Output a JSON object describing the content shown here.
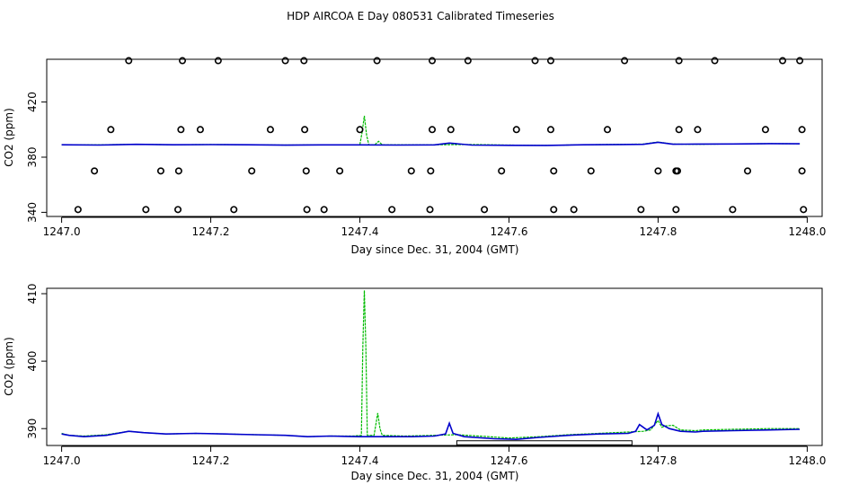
{
  "figure": {
    "title": "HDP AIRCOA E  Day 080531  Calibrated Timeseries"
  },
  "colors": {
    "green": "#00bb00",
    "blue": "#0000cc",
    "axis": "#000000"
  },
  "chart_data": [
    {
      "type": "line",
      "xlabel": "Day since Dec. 31, 2004 (GMT)",
      "ylabel": "CO2 (ppm)",
      "xlim": [
        1246.98,
        1248.02
      ],
      "ylim": [
        337,
        451
      ],
      "xticks": [
        "1247.0",
        "1247.2",
        "1247.4",
        "1247.6",
        "1247.8",
        "1248.0"
      ],
      "xtick_values": [
        1247.0,
        1247.2,
        1247.4,
        1247.6,
        1247.8,
        1248.0
      ],
      "yticks": [
        "340",
        "380",
        "420"
      ],
      "ytick_values": [
        340,
        380,
        420
      ],
      "series": [
        {
          "color": "green",
          "style": "line",
          "x": [
            1247.0,
            1247.05,
            1247.1,
            1247.15,
            1247.2,
            1247.25,
            1247.3,
            1247.35,
            1247.4,
            1247.403,
            1247.406,
            1247.409,
            1247.412,
            1247.42,
            1247.425,
            1247.43,
            1247.5,
            1247.55,
            1247.6,
            1247.65,
            1247.7,
            1247.75,
            1247.78,
            1247.8,
            1247.82,
            1247.85,
            1247.9,
            1247.95,
            1247.99
          ],
          "y": [
            389,
            389,
            389.3,
            389,
            389.2,
            389,
            388.8,
            388.9,
            389,
            398,
            410,
            396,
            389,
            389,
            391.5,
            389,
            389,
            389.2,
            388.8,
            388.5,
            389,
            389.3,
            389.5,
            391,
            389.5,
            389.3,
            389.6,
            389.8,
            389.7
          ]
        },
        {
          "color": "blue",
          "style": "line",
          "x": [
            1247.0,
            1247.05,
            1247.1,
            1247.15,
            1247.2,
            1247.25,
            1247.3,
            1247.35,
            1247.4,
            1247.45,
            1247.5,
            1247.52,
            1247.55,
            1247.6,
            1247.65,
            1247.7,
            1247.75,
            1247.78,
            1247.8,
            1247.82,
            1247.85,
            1247.9,
            1247.95,
            1247.99
          ],
          "y": [
            389,
            388.8,
            389.3,
            389,
            389.1,
            389,
            388.7,
            388.9,
            388.9,
            388.8,
            388.9,
            390.2,
            388.8,
            388.6,
            388.5,
            389,
            389.2,
            389.3,
            390.8,
            389.4,
            389.5,
            389.6,
            389.8,
            389.7
          ]
        },
        {
          "color": "black",
          "style": "points",
          "x": [
            1247.09,
            1247.162,
            1247.21,
            1247.3,
            1247.325,
            1247.423,
            1247.497,
            1247.545,
            1247.635,
            1247.656,
            1247.755,
            1247.828,
            1247.876,
            1247.967,
            1247.99,
            1247.066,
            1247.16,
            1247.186,
            1247.28,
            1247.326,
            1247.4,
            1247.497,
            1247.522,
            1247.61,
            1247.656,
            1247.732,
            1247.828,
            1247.853,
            1247.944,
            1247.993,
            1247.044,
            1247.133,
            1247.157,
            1247.255,
            1247.328,
            1247.373,
            1247.469,
            1247.495,
            1247.59,
            1247.66,
            1247.71,
            1247.8,
            1247.824,
            1247.826,
            1247.92,
            1247.993,
            1247.022,
            1247.113,
            1247.156,
            1247.231,
            1247.329,
            1247.352,
            1247.443,
            1247.494,
            1247.567,
            1247.66,
            1247.687,
            1247.777,
            1247.824,
            1247.9,
            1247.995
          ],
          "y": [
            450,
            450,
            450,
            450,
            450,
            450,
            450,
            450,
            450,
            450,
            450,
            450,
            450,
            450,
            450,
            400,
            400,
            400,
            400,
            400,
            400,
            400,
            400,
            400,
            400,
            400,
            400,
            400,
            400,
            400,
            370,
            370,
            370,
            370,
            370,
            370,
            370,
            370,
            370,
            370,
            370,
            370,
            370,
            370,
            370,
            370,
            342,
            342,
            342,
            342,
            342,
            342,
            342,
            342,
            342,
            342,
            342,
            342,
            342,
            342,
            342
          ]
        }
      ]
    },
    {
      "type": "line",
      "xlabel": "Day since Dec. 31, 2004 (GMT)",
      "ylabel": "CO2 (ppm)",
      "xlim": [
        1246.98,
        1248.02
      ],
      "ylim": [
        387.5,
        410.8
      ],
      "xticks": [
        "1247.0",
        "1247.2",
        "1247.4",
        "1247.6",
        "1247.8",
        "1248.0"
      ],
      "xtick_values": [
        1247.0,
        1247.2,
        1247.4,
        1247.6,
        1247.8,
        1248.0
      ],
      "yticks": [
        "390",
        "400",
        "410"
      ],
      "ytick_values": [
        390,
        400,
        410
      ],
      "span": {
        "x": [
          1247.53,
          1247.765
        ],
        "y": [
          387.6,
          388.2
        ]
      },
      "series": [
        {
          "color": "green",
          "style": "line",
          "x": [
            1247.0,
            1247.01,
            1247.03,
            1247.06,
            1247.09,
            1247.11,
            1247.14,
            1247.18,
            1247.22,
            1247.26,
            1247.3,
            1247.33,
            1247.36,
            1247.39,
            1247.402,
            1247.404,
            1247.406,
            1247.408,
            1247.41,
            1247.414,
            1247.419,
            1247.422,
            1247.424,
            1247.427,
            1247.43,
            1247.46,
            1247.5,
            1247.53,
            1247.56,
            1247.6,
            1247.64,
            1247.68,
            1247.72,
            1247.76,
            1247.78,
            1247.79,
            1247.8,
            1247.805,
            1247.81,
            1247.82,
            1247.83,
            1247.85,
            1247.86,
            1247.9,
            1247.95,
            1247.99
          ],
          "y": [
            389.3,
            389.0,
            388.9,
            389.1,
            389.6,
            389.4,
            389.2,
            389.3,
            389.2,
            389.1,
            389.0,
            388.8,
            388.9,
            388.9,
            389.0,
            402.0,
            410.5,
            402.0,
            389.0,
            389.0,
            389.0,
            391.0,
            392.3,
            390.0,
            389.0,
            388.9,
            389.0,
            389.1,
            388.9,
            388.6,
            388.8,
            389.1,
            389.3,
            389.5,
            389.6,
            389.8,
            391.2,
            390.2,
            390.4,
            390.5,
            389.8,
            389.7,
            389.8,
            389.9,
            390.0,
            390.0
          ]
        },
        {
          "color": "blue",
          "style": "line",
          "x": [
            1247.0,
            1247.01,
            1247.03,
            1247.06,
            1247.09,
            1247.11,
            1247.14,
            1247.18,
            1247.22,
            1247.26,
            1247.3,
            1247.33,
            1247.36,
            1247.4,
            1247.44,
            1247.47,
            1247.5,
            1247.515,
            1247.52,
            1247.525,
            1247.54,
            1247.58,
            1247.61,
            1247.64,
            1247.68,
            1247.72,
            1247.76,
            1247.77,
            1247.775,
            1247.785,
            1247.795,
            1247.8,
            1247.805,
            1247.815,
            1247.83,
            1247.85,
            1247.86,
            1247.9,
            1247.95,
            1247.99
          ],
          "y": [
            389.2,
            389.0,
            388.8,
            389.0,
            389.6,
            389.4,
            389.2,
            389.3,
            389.2,
            389.1,
            389.0,
            388.8,
            388.9,
            388.8,
            388.8,
            388.8,
            388.9,
            389.2,
            390.8,
            389.3,
            388.8,
            388.5,
            388.4,
            388.7,
            389.0,
            389.2,
            389.3,
            389.6,
            390.6,
            389.8,
            390.5,
            392.2,
            390.6,
            390.0,
            389.6,
            389.5,
            389.6,
            389.7,
            389.8,
            389.9
          ]
        }
      ]
    }
  ]
}
